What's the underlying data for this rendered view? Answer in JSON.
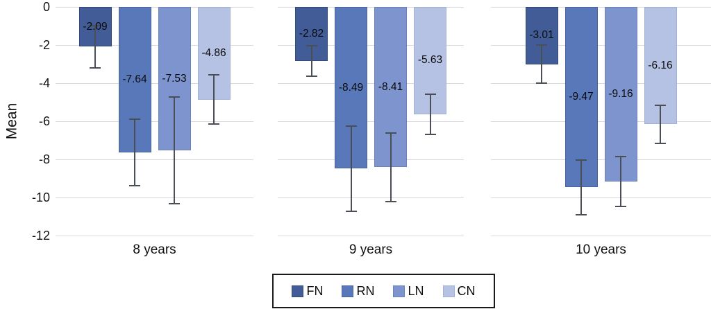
{
  "chart_data": {
    "type": "bar",
    "title": "",
    "xlabel": "",
    "ylabel": "Mean",
    "ylim": [
      -12,
      0
    ],
    "yticks": [
      0,
      -2,
      -4,
      -6,
      -8,
      -10,
      -12
    ],
    "grid": true,
    "legend_position": "bottom",
    "categories": [
      "8 years",
      "9 years",
      "10 years"
    ],
    "series": [
      {
        "name": "FN",
        "color": "#415c96",
        "border_color": "#33497a",
        "values": [
          -2.09,
          -2.82,
          -3.01
        ],
        "errors": [
          1.1,
          0.8,
          1.0
        ]
      },
      {
        "name": "RN",
        "color": "#5878ba",
        "border_color": "#46629f",
        "values": [
          -7.64,
          -8.49,
          -9.47
        ],
        "errors": [
          1.75,
          2.25,
          1.45
        ]
      },
      {
        "name": "LN",
        "color": "#7d94ce",
        "border_color": "#6a81bc",
        "values": [
          -7.53,
          -8.41,
          -9.16
        ],
        "errors": [
          2.8,
          1.8,
          1.3
        ]
      },
      {
        "name": "CN",
        "color": "#b6c2e3",
        "border_color": "#a2b1d6",
        "values": [
          -4.86,
          -5.63,
          -6.16
        ],
        "errors": [
          1.3,
          1.05,
          1.0
        ]
      }
    ],
    "error_bar_color": "#4a4f55",
    "gridline_color": "#d9d9d9"
  }
}
